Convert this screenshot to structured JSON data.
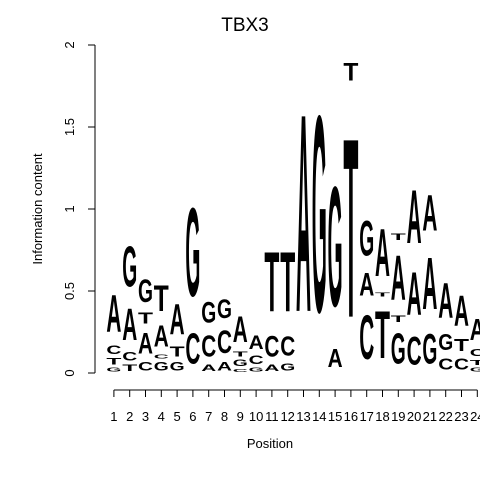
{
  "chart_data": {
    "type": "sequence-logo",
    "title": "TBX3",
    "xlabel": "Position",
    "ylabel": "Information content",
    "ylim": [
      0,
      2
    ],
    "yticks": [
      0,
      0.5,
      1,
      1.5,
      2
    ],
    "ytick_labels": [
      "0",
      "0.5",
      "1",
      "1.5",
      "2"
    ],
    "xtick_labels": [
      "1",
      "2",
      "3",
      "4",
      "5",
      "6",
      "7",
      "8",
      "9",
      "10",
      "11",
      "12",
      "13",
      "14",
      "15",
      "16",
      "17",
      "18",
      "19",
      "20",
      "21",
      "22",
      "23",
      "24"
    ],
    "colors": {
      "A": "#00ee00",
      "C": "#0000ee",
      "G": "#f5a000",
      "T": "#ff0000"
    },
    "positions": [
      {
        "pos": 1,
        "stack": [
          [
            "G",
            0.04
          ],
          [
            "T",
            0.06
          ],
          [
            "C",
            0.08
          ],
          [
            "A",
            0.36
          ]
        ]
      },
      {
        "pos": 2,
        "stack": [
          [
            "T",
            0.06
          ],
          [
            "C",
            0.08
          ],
          [
            "A",
            0.31
          ],
          [
            "G",
            0.39
          ]
        ]
      },
      {
        "pos": 3,
        "stack": [
          [
            "C",
            0.08
          ],
          [
            "A",
            0.2
          ],
          [
            "T",
            0.11
          ],
          [
            "G",
            0.22
          ]
        ]
      },
      {
        "pos": 4,
        "stack": [
          [
            "G",
            0.08
          ],
          [
            "C",
            0.04
          ],
          [
            "A",
            0.21
          ],
          [
            "T",
            0.25
          ]
        ]
      },
      {
        "pos": 5,
        "stack": [
          [
            "G",
            0.08
          ],
          [
            "T",
            0.1
          ],
          [
            "A",
            0.3
          ]
        ]
      },
      {
        "pos": 6,
        "stack": [
          [
            "C",
            0.3
          ],
          [
            "G",
            0.86
          ]
        ]
      },
      {
        "pos": 7,
        "stack": [
          [
            "A",
            0.06
          ],
          [
            "C",
            0.21
          ],
          [
            "G",
            0.2
          ]
        ]
      },
      {
        "pos": 8,
        "stack": [
          [
            "A",
            0.08
          ],
          [
            "C",
            0.22
          ],
          [
            "G",
            0.18
          ]
        ]
      },
      {
        "pos": 9,
        "stack": [
          [
            "C",
            0.03
          ],
          [
            "G",
            0.06
          ],
          [
            "T",
            0.05
          ],
          [
            "A",
            0.25
          ]
        ]
      },
      {
        "pos": 10,
        "stack": [
          [
            "G",
            0.04
          ],
          [
            "C",
            0.08
          ],
          [
            "A",
            0.13
          ]
        ]
      },
      {
        "pos": 11,
        "stack": [
          [
            "A",
            0.06
          ],
          [
            "C",
            0.2
          ],
          [
            "T",
            0.58
          ]
        ]
      },
      {
        "pos": 12,
        "stack": [
          [
            "G",
            0.07
          ],
          [
            "C",
            0.19
          ],
          [
            "T",
            0.58
          ]
        ]
      },
      {
        "pos": 13,
        "stack": [
          [
            "A",
            1.93
          ]
        ]
      },
      {
        "pos": 14,
        "stack": [
          [
            "G",
            1.92
          ]
        ]
      },
      {
        "pos": 15,
        "stack": [
          [
            "A",
            0.18
          ],
          [
            "G",
            1.17
          ]
        ]
      },
      {
        "pos": 16,
        "stack": [
          [
            "T",
            1.75
          ],
          [
            "T",
            0.17
          ]
        ]
      },
      {
        "pos": 17,
        "stack": [
          [
            "C",
            0.43
          ],
          [
            "A",
            0.22
          ],
          [
            "G",
            0.34
          ]
        ]
      },
      {
        "pos": 18,
        "stack": [
          [
            "T",
            0.46
          ],
          [
            "T",
            0.04
          ],
          [
            "A",
            0.46
          ]
        ]
      },
      {
        "pos": 19,
        "stack": [
          [
            "G",
            0.3
          ],
          [
            "T",
            0.06
          ],
          [
            "A",
            0.44
          ],
          [
            "T",
            0.06
          ]
        ]
      },
      {
        "pos": 20,
        "stack": [
          [
            "C",
            0.27
          ],
          [
            "A",
            0.42
          ],
          [
            "A",
            0.52
          ]
        ]
      },
      {
        "pos": 21,
        "stack": [
          [
            "G",
            0.29
          ],
          [
            "A",
            0.51
          ],
          [
            "A",
            0.35
          ]
        ]
      },
      {
        "pos": 22,
        "stack": [
          [
            "C",
            0.11
          ],
          [
            "G",
            0.16
          ],
          [
            "A",
            0.34
          ]
        ]
      },
      {
        "pos": 23,
        "stack": [
          [
            "C",
            0.11
          ],
          [
            "T",
            0.12
          ],
          [
            "A",
            0.3
          ]
        ]
      },
      {
        "pos": 24,
        "stack": [
          [
            "G",
            0.04
          ],
          [
            "T",
            0.05
          ],
          [
            "C",
            0.07
          ],
          [
            "A",
            0.21
          ]
        ]
      }
    ]
  }
}
